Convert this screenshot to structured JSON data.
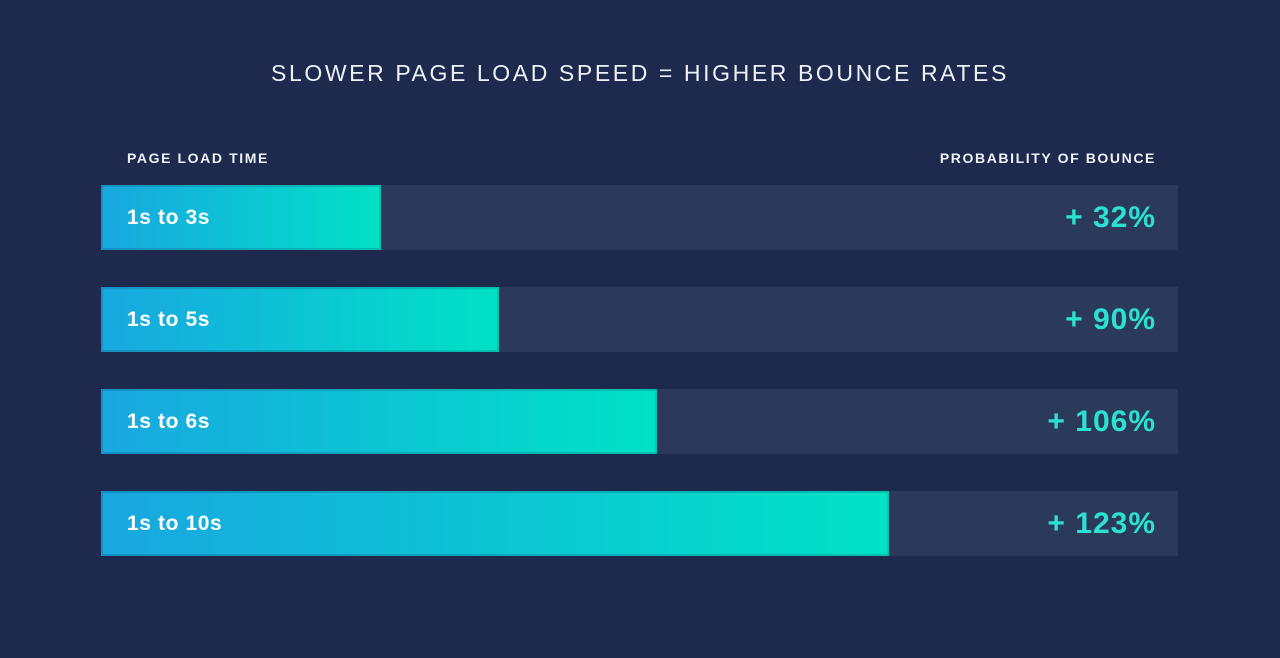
{
  "title": "SLOWER PAGE LOAD SPEED = HIGHER BOUNCE RATES",
  "columns": {
    "left": "PAGE LOAD TIME",
    "right": "PROBABILITY OF BOUNCE"
  },
  "colors": {
    "background": "#1D2A4E",
    "track": "#2B3A5B",
    "bar_gradient_start": "#19A7E0",
    "bar_gradient_end": "#00E2C6",
    "value_text": "#2BE2D2",
    "heading_text": "#EDF1F8"
  },
  "chart_data": {
    "type": "bar",
    "orientation": "horizontal",
    "title": "SLOWER PAGE LOAD SPEED = HIGHER BOUNCE RATES",
    "ylabel": "PAGE LOAD TIME",
    "xlabel": "PROBABILITY OF BOUNCE",
    "categories": [
      "1s to 3s",
      "1s to 5s",
      "1s to 6s",
      "1s to 10s"
    ],
    "values": [
      32,
      90,
      106,
      123
    ],
    "value_labels": [
      "+ 32%",
      "+ 90%",
      "+ 106%",
      "+ 123%"
    ],
    "bar_width_pct": [
      26.0,
      37.0,
      51.6,
      73.2
    ],
    "grid": false,
    "legend": false
  }
}
